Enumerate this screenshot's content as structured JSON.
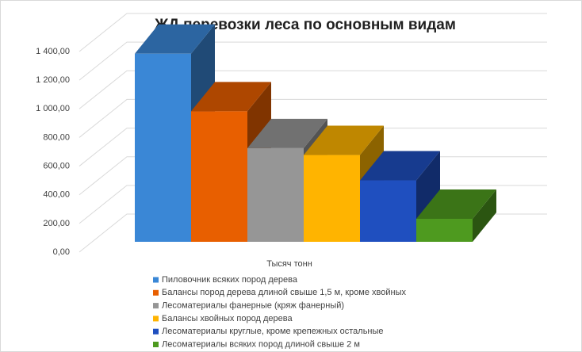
{
  "chart_data": {
    "type": "bar3d",
    "title": "ЖД перевозки леса по основным видам",
    "categories": [
      "Тысяч тонн"
    ],
    "series": [
      {
        "name": "Пиловочник  всяких пород дерева",
        "color": "#3a87d6",
        "values": [
          1350
        ]
      },
      {
        "name": "Балансы пород дерева длиной свыше 1,5 м, кроме хвойных",
        "color": "#e85f00",
        "values": [
          937
        ]
      },
      {
        "name": "Лесоматериалы фанерные (кряж фанерный)",
        "color": "#969696",
        "values": [
          672
        ]
      },
      {
        "name": "Балансы хвойных пород дерева",
        "color": "#ffb400",
        "values": [
          623
        ]
      },
      {
        "name": "Лесоматериалы круглые, кроме крепежных  остальные",
        "color": "#1f4fbf",
        "values": [
          441
        ]
      },
      {
        "name": "Лесоматериалы всяких пород длиной свыше 2 м",
        "color": "#4e9a1f",
        "values": [
          165
        ]
      }
    ],
    "ylim": [
      0,
      1400
    ],
    "yticks": [
      {
        "value": 0,
        "label": "0,00"
      },
      {
        "value": 200,
        "label": "200,00"
      },
      {
        "value": 400,
        "label": "400,00"
      },
      {
        "value": 600,
        "label": "600,00"
      },
      {
        "value": 800,
        "label": "800,00"
      },
      {
        "value": 1000,
        "label": "1 000,00"
      },
      {
        "value": 1200,
        "label": "1 200,00"
      },
      {
        "value": 1400,
        "label": "1 400,00"
      }
    ],
    "grid": true,
    "legend": "bottom"
  }
}
